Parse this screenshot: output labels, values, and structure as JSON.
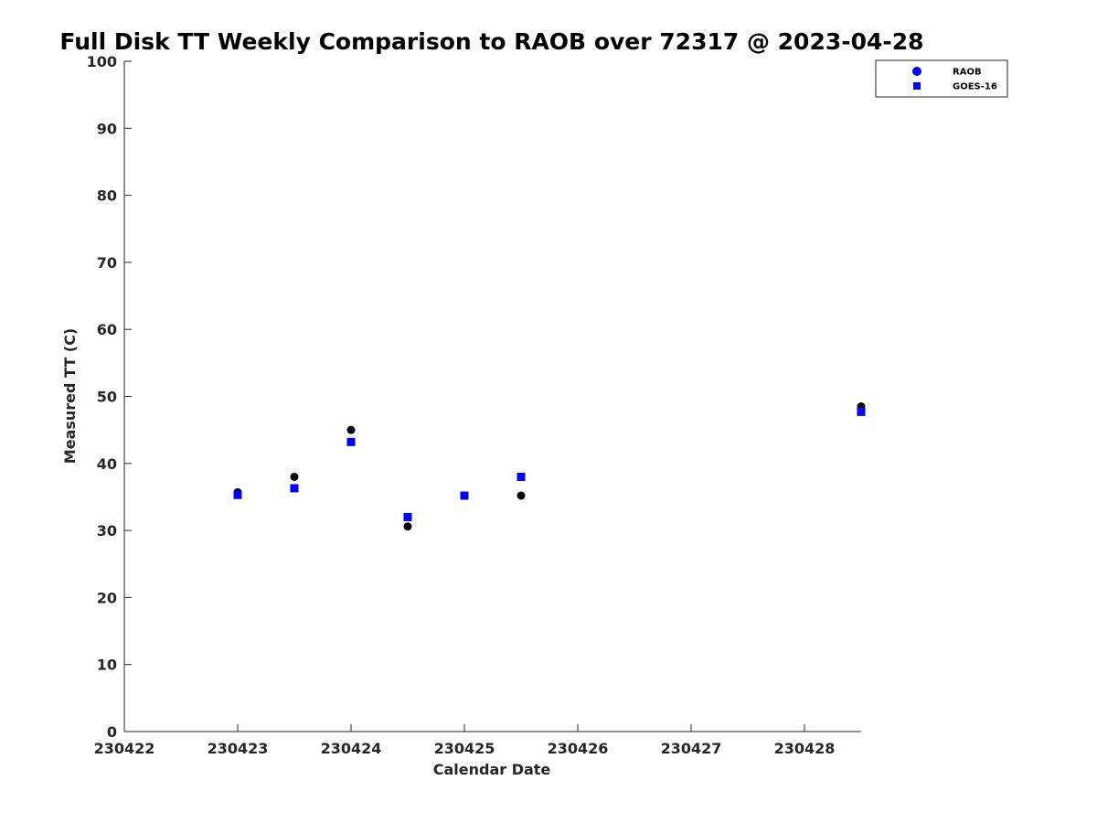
{
  "chart_data": {
    "type": "scatter",
    "title": "Full Disk TT Weekly Comparison to RAOB over 72317 @ 2023-04-28",
    "xlabel": "Calendar Date",
    "ylabel": "Measured TT (C)",
    "xlim": [
      0,
      6.5
    ],
    "ylim": [
      0,
      100
    ],
    "x_ticks": [
      {
        "value": 0,
        "label": "230422"
      },
      {
        "value": 1,
        "label": "230423"
      },
      {
        "value": 2,
        "label": "230424"
      },
      {
        "value": 3,
        "label": "230425"
      },
      {
        "value": 4,
        "label": "230426"
      },
      {
        "value": 5,
        "label": "230427"
      },
      {
        "value": 6,
        "label": "230428"
      }
    ],
    "y_ticks": [
      0,
      10,
      20,
      30,
      40,
      50,
      60,
      70,
      80,
      90,
      100
    ],
    "grid": false,
    "legend_position": "top-right",
    "series": [
      {
        "name": "RAOB",
        "marker": "circle",
        "legend_color": "#0000ff",
        "point_color": "#000000",
        "x": [
          1.0,
          1.5,
          2.0,
          2.5,
          3.0,
          3.5,
          6.5
        ],
        "y": [
          35.7,
          38.0,
          45.0,
          30.6,
          35.2,
          35.2,
          48.5
        ]
      },
      {
        "name": "GOES-16",
        "marker": "square",
        "legend_color": "#0000ff",
        "point_color": "#0000ff",
        "x": [
          1.0,
          1.5,
          2.0,
          2.5,
          3.0,
          3.5,
          6.5
        ],
        "y": [
          35.3,
          36.3,
          43.2,
          32.0,
          35.2,
          38.0,
          47.7
        ]
      }
    ]
  }
}
